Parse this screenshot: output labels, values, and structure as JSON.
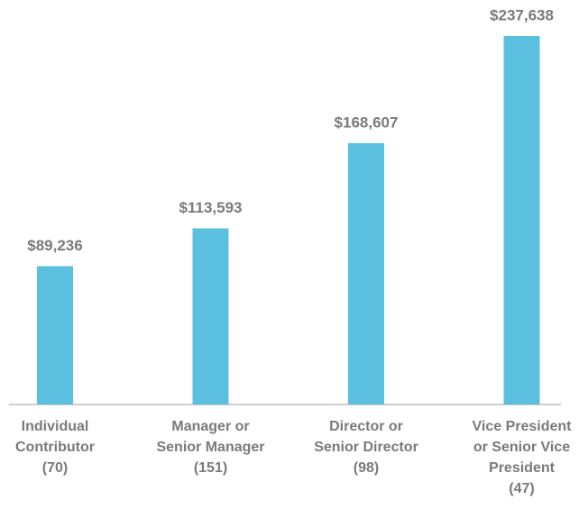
{
  "chart_data": {
    "type": "bar",
    "categories": [
      [
        "Individual",
        "Contributor",
        "(70)"
      ],
      [
        "Manager or",
        "Senior Manager",
        "(151)"
      ],
      [
        "Director or",
        "Senior Director",
        "(98)"
      ],
      [
        "Vice President",
        "or Senior Vice",
        "President",
        "(47)"
      ]
    ],
    "values": [
      89236,
      113593,
      168607,
      237638
    ],
    "value_labels": [
      "$89,236",
      "$113,593",
      "$168,607",
      "$237,638"
    ],
    "color": "#5bc0e0"
  }
}
